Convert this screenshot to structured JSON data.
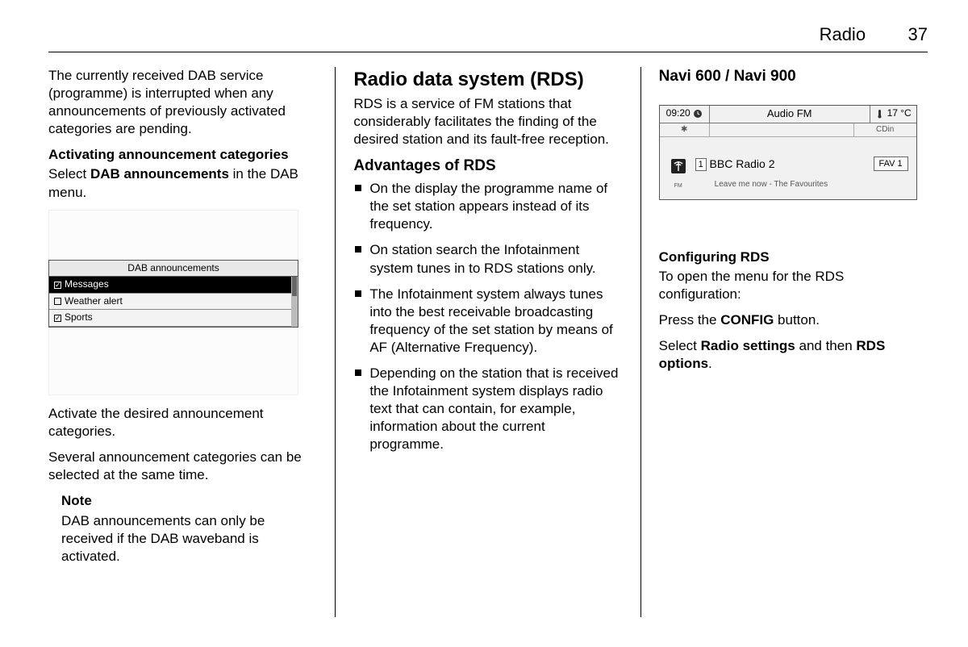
{
  "header": {
    "title": "Radio",
    "page": "37"
  },
  "col1": {
    "p1": "The currently received DAB service (programme) is interrupted when any announcements of previously activated categories are pending.",
    "h_activating": "Activating announcement categories",
    "p2_a": "Select ",
    "p2_b": "DAB announcements",
    "p2_c": " in the DAB menu.",
    "dab": {
      "title": "DAB announcements",
      "items": [
        {
          "label": "Messages",
          "checked": true,
          "selected": true
        },
        {
          "label": "Weather alert",
          "checked": false,
          "selected": false
        },
        {
          "label": "Sports",
          "checked": true,
          "selected": false
        }
      ]
    },
    "p3": "Activate the desired announcement categories.",
    "p4": "Several announcement categories can be selected at the same time.",
    "note_h": "Note",
    "note_p": "DAB announcements can only be received if the DAB waveband is activated."
  },
  "col2": {
    "h_rds": "Radio data system (RDS)",
    "p_rds": "RDS is a service of FM stations that considerably facilitates the finding of the desired station and its fault-free reception.",
    "h_adv": "Advantages of RDS",
    "bullets": [
      "On the display the programme name of the set station appears instead of its frequency.",
      "On station search the Infotainment system tunes in to RDS stations only.",
      "The Infotainment system always tunes into the best receivable broadcasting frequency of the set station by means of AF (Alternative Frequency).",
      "Depending on the station that is received the Infotainment system displays radio text that can contain, for example, information about the current programme."
    ]
  },
  "col3": {
    "h_navi": "Navi 600 / Navi 900",
    "device": {
      "time": "09:20",
      "title": "Audio FM",
      "temp": "17 °C",
      "bt_label": "",
      "cd_label": "CDin",
      "fm_label": "FM",
      "preset_num": "1",
      "station": "BBC Radio 2",
      "now_playing": "Leave me now - The Favourites",
      "fav": "FAV 1"
    },
    "h_cfg": "Configuring RDS",
    "p_cfg1": "To open the menu for the RDS configuration:",
    "p_cfg2_a": "Press the ",
    "p_cfg2_b": "CONFIG",
    "p_cfg2_c": " button.",
    "p_cfg3_a": "Select ",
    "p_cfg3_b": "Radio settings",
    "p_cfg3_c": " and then ",
    "p_cfg3_d": "RDS options",
    "p_cfg3_e": "."
  }
}
